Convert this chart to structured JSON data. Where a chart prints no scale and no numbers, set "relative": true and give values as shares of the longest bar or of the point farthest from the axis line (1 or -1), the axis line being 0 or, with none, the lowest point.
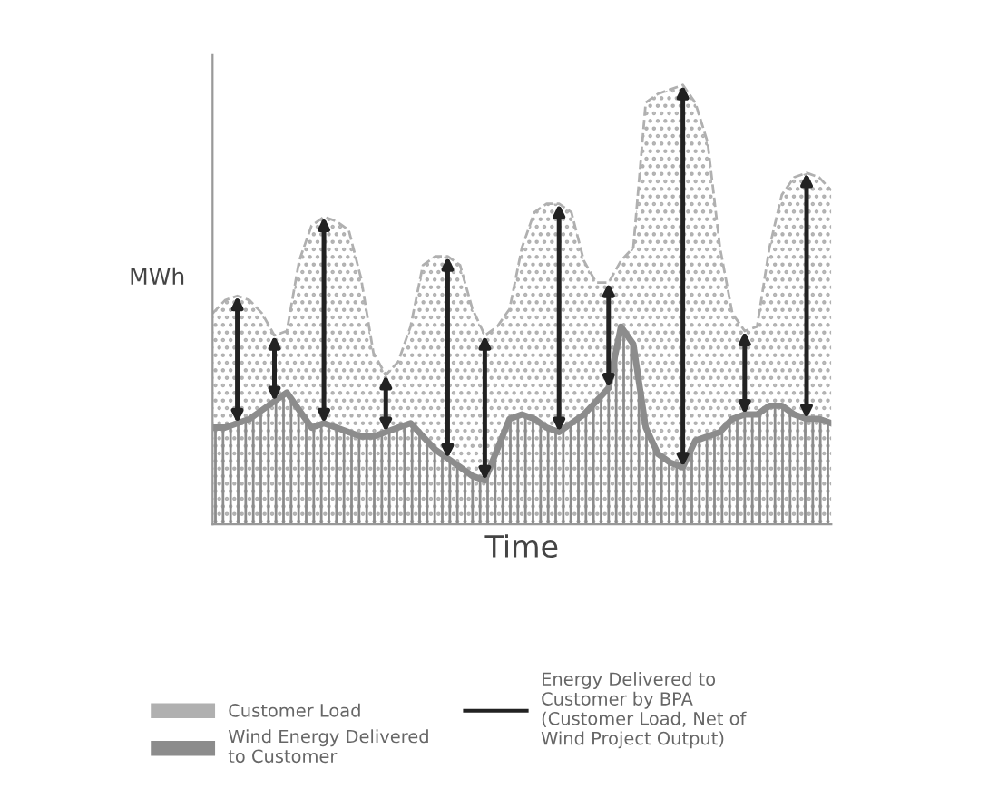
{
  "chart_data": {
    "type": "area",
    "relative": true,
    "xlabel": "Time",
    "ylabel": "MWh",
    "legend": "bottom",
    "categories": [
      null,
      null,
      null,
      null,
      null,
      null,
      null,
      null,
      null,
      null,
      null,
      null,
      null,
      null,
      null,
      null,
      null,
      null,
      null,
      null,
      null,
      null,
      null,
      null,
      null,
      null,
      null,
      null,
      null,
      null,
      null,
      null,
      null,
      null,
      null,
      null,
      null,
      null,
      null,
      null,
      null,
      null,
      null,
      null,
      null,
      null,
      null,
      null,
      null,
      null,
      null
    ],
    "series": [
      {
        "name": "Customer Load",
        "color": "#b0b0b0",
        "values": [
          0.48,
          0.51,
          0.52,
          0.51,
          0.48,
          0.43,
          0.44,
          0.6,
          0.68,
          0.7,
          0.69,
          0.67,
          0.56,
          0.39,
          0.34,
          0.37,
          0.45,
          0.59,
          0.61,
          0.61,
          0.59,
          0.49,
          0.43,
          0.45,
          0.49,
          0.63,
          0.71,
          0.73,
          0.73,
          0.71,
          0.6,
          0.55,
          0.55,
          0.6,
          0.63,
          0.96,
          0.98,
          0.99,
          1.0,
          0.96,
          0.87,
          0.63,
          0.48,
          0.44,
          0.45,
          0.63,
          0.75,
          0.79,
          0.8,
          0.79,
          0.76
        ]
      },
      {
        "name": "Wind Energy Delivered\nto Customer",
        "color": "#8c8c8c",
        "values": [
          0.22,
          0.22,
          0.23,
          0.24,
          0.26,
          0.28,
          0.3,
          0.26,
          0.22,
          0.23,
          0.22,
          0.21,
          0.2,
          0.2,
          0.21,
          0.22,
          0.23,
          0.2,
          0.17,
          0.15,
          0.13,
          0.11,
          0.1,
          0.17,
          0.24,
          0.25,
          0.24,
          0.22,
          0.21,
          0.23,
          0.25,
          0.28,
          0.31,
          0.45,
          0.41,
          0.22,
          0.16,
          0.14,
          0.13,
          0.19,
          0.2,
          0.21,
          0.24,
          0.25,
          0.25,
          0.27,
          0.27,
          0.25,
          0.24,
          0.24,
          0.23
        ]
      }
    ],
    "annotations": [
      "Energy Delivered to\nCustomer by BPA\n(Customer Load, Net of\nWind Project Output)"
    ]
  }
}
